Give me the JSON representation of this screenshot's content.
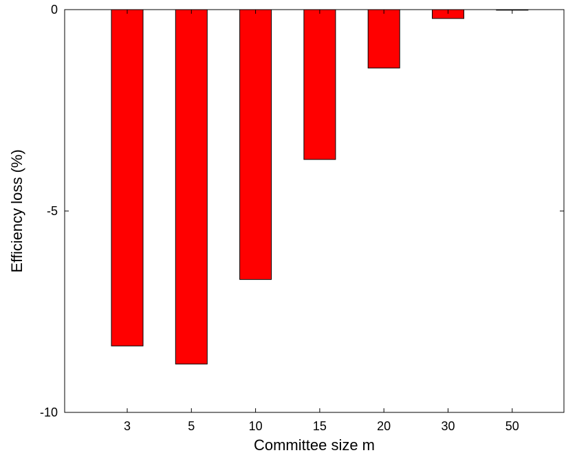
{
  "chart_data": {
    "type": "bar",
    "title": "",
    "xlabel": "Committee size m",
    "ylabel": "Efficiency loss (%)",
    "categories": [
      "3",
      "5",
      "10",
      "15",
      "20",
      "30",
      "50"
    ],
    "values": [
      -8.35,
      -8.8,
      -6.7,
      -3.72,
      -1.45,
      -0.22,
      -0.01
    ],
    "ylim": [
      -10,
      0
    ],
    "yticks": [
      0,
      -5,
      -10
    ],
    "ytick_labels": [
      "0",
      "-5",
      "-10"
    ],
    "grid": false,
    "legend": "none",
    "colors": {
      "bar_fill": "#ff0000",
      "bar_stroke": "#000000",
      "axis": "#000000"
    }
  }
}
